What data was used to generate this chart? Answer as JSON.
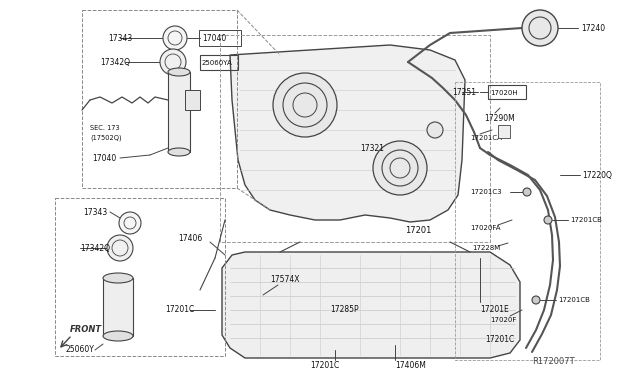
{
  "bg_color": "#ffffff",
  "line_color": "#444444",
  "text_color": "#111111",
  "ref_code": "R172007T",
  "figsize": [
    6.4,
    3.72
  ],
  "dpi": 100,
  "xlim": [
    0,
    640
  ],
  "ylim": [
    0,
    372
  ]
}
